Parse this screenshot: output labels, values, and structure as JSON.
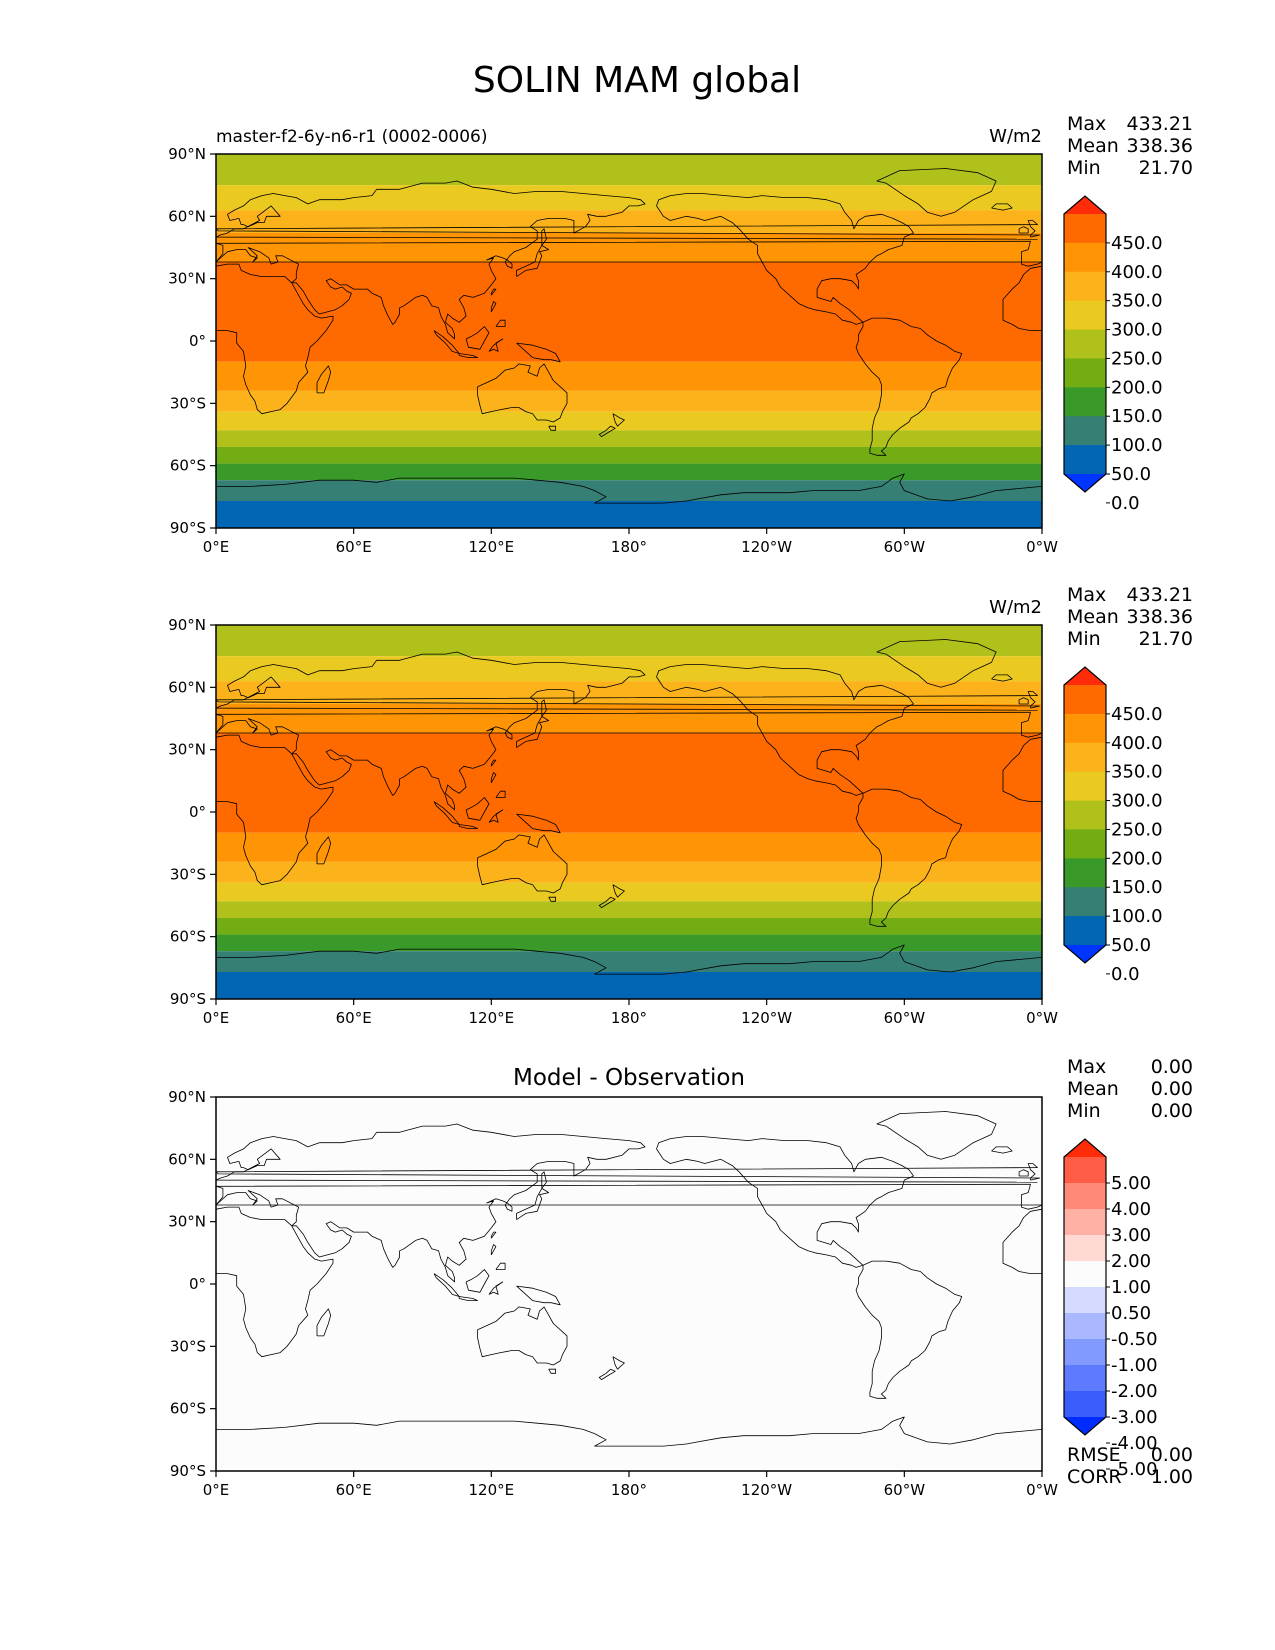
{
  "figure": {
    "title": "SOLIN MAM global"
  },
  "colors": {
    "solin_levels": [
      "#0035ff",
      "#0066b3",
      "#357f74",
      "#3a9a29",
      "#72ad14",
      "#b0c11b",
      "#eaca20",
      "#fcb31b",
      "#ff9505",
      "#ff6a00",
      "#ff2c0a"
    ],
    "diff_levels": [
      "#002cff",
      "#3a5dfc",
      "#5e7bff",
      "#829aff",
      "#a9b8ff",
      "#d4dbff",
      "#fcfcfc",
      "#ffd9d4",
      "#ffb1a5",
      "#ff8a77",
      "#ff5d45",
      "#ff2c0a"
    ]
  },
  "panels": [
    {
      "name": "model",
      "left_title": "master-f2-6y-n6-r1 (0002-0006)",
      "center_title": "",
      "units": "W/m2",
      "stats": {
        "max_label": "Max",
        "max": "433.21",
        "mean_label": "Mean",
        "mean": "338.36",
        "min_label": "Min",
        "min": "21.70"
      },
      "colorbar_labels": [
        "450.0",
        "400.0",
        "350.0",
        "300.0",
        "250.0",
        "200.0",
        "150.0",
        "100.0",
        "50.0",
        "0.0"
      ]
    },
    {
      "name": "observation",
      "left_title": "",
      "center_title": "",
      "units": "W/m2",
      "stats": {
        "max_label": "Max",
        "max": "433.21",
        "mean_label": "Mean",
        "mean": "338.36",
        "min_label": "Min",
        "min": "21.70"
      },
      "colorbar_labels": [
        "450.0",
        "400.0",
        "350.0",
        "300.0",
        "250.0",
        "200.0",
        "150.0",
        "100.0",
        "50.0",
        "0.0"
      ]
    },
    {
      "name": "difference",
      "left_title": "",
      "center_title": "Model - Observation",
      "units": "",
      "stats": {
        "max_label": "Max",
        "max": "0.00",
        "mean_label": "Mean",
        "mean": "0.00",
        "min_label": "Min",
        "min": "0.00"
      },
      "colorbar_labels": [
        "5.00",
        "4.00",
        "3.00",
        "2.00",
        "1.00",
        "0.50",
        "-0.50",
        "-1.00",
        "-2.00",
        "-3.00",
        "-4.00",
        "-5.00"
      ],
      "extra_stats": {
        "rmse_label": "RMSE",
        "rmse": "0.00",
        "corr_label": "CORR",
        "corr": "1.00"
      }
    }
  ],
  "axes": {
    "x_ticks": [
      "0°E",
      "60°E",
      "120°E",
      "180°",
      "120°W",
      "60°W",
      "0°W"
    ],
    "y_ticks": [
      "90°N",
      "60°N",
      "30°N",
      "0°",
      "30°S",
      "60°S",
      "90°S"
    ]
  },
  "chart_data": [
    {
      "type": "heatmap",
      "panel": "model",
      "title": "master-f2-6y-n6-r1 (0002-0006)",
      "units": "W/m2",
      "xlim": [
        0,
        360
      ],
      "ylim": [
        -90,
        90
      ],
      "color_levels": [
        0,
        50,
        100,
        150,
        200,
        250,
        300,
        350,
        400,
        450
      ],
      "latitude_bands": [
        {
          "lat_from": 90,
          "lat_to": 75,
          "value": 225
        },
        {
          "lat_from": 75,
          "lat_to": 63,
          "value": 275
        },
        {
          "lat_from": 63,
          "lat_to": 52,
          "value": 325
        },
        {
          "lat_from": 52,
          "lat_to": 38,
          "value": 375
        },
        {
          "lat_from": 38,
          "lat_to": -10,
          "value": 425
        },
        {
          "lat_from": -10,
          "lat_to": -24,
          "value": 375
        },
        {
          "lat_from": -24,
          "lat_to": -34,
          "value": 325
        },
        {
          "lat_from": -34,
          "lat_to": -43,
          "value": 275
        },
        {
          "lat_from": -43,
          "lat_to": -51,
          "value": 225
        },
        {
          "lat_from": -51,
          "lat_to": -59,
          "value": 175
        },
        {
          "lat_from": -59,
          "lat_to": -67,
          "value": 125
        },
        {
          "lat_from": -67,
          "lat_to": -77,
          "value": 75
        },
        {
          "lat_from": -77,
          "lat_to": -90,
          "value": 25
        }
      ],
      "stats": {
        "max": 433.21,
        "mean": 338.36,
        "min": 21.7
      }
    },
    {
      "type": "heatmap",
      "panel": "observation",
      "units": "W/m2",
      "xlim": [
        0,
        360
      ],
      "ylim": [
        -90,
        90
      ],
      "color_levels": [
        0,
        50,
        100,
        150,
        200,
        250,
        300,
        350,
        400,
        450
      ],
      "latitude_bands": [
        {
          "lat_from": 90,
          "lat_to": 75,
          "value": 225
        },
        {
          "lat_from": 75,
          "lat_to": 63,
          "value": 275
        },
        {
          "lat_from": 63,
          "lat_to": 52,
          "value": 325
        },
        {
          "lat_from": 52,
          "lat_to": 38,
          "value": 375
        },
        {
          "lat_from": 38,
          "lat_to": -10,
          "value": 425
        },
        {
          "lat_from": -10,
          "lat_to": -24,
          "value": 375
        },
        {
          "lat_from": -24,
          "lat_to": -34,
          "value": 325
        },
        {
          "lat_from": -34,
          "lat_to": -43,
          "value": 275
        },
        {
          "lat_from": -43,
          "lat_to": -51,
          "value": 225
        },
        {
          "lat_from": -51,
          "lat_to": -59,
          "value": 175
        },
        {
          "lat_from": -59,
          "lat_to": -67,
          "value": 125
        },
        {
          "lat_from": -67,
          "lat_to": -77,
          "value": 75
        },
        {
          "lat_from": -77,
          "lat_to": -90,
          "value": 25
        }
      ],
      "stats": {
        "max": 433.21,
        "mean": 338.36,
        "min": 21.7
      }
    },
    {
      "type": "heatmap",
      "panel": "difference",
      "title": "Model - Observation",
      "xlim": [
        0,
        360
      ],
      "ylim": [
        -90,
        90
      ],
      "color_levels": [
        -5,
        -4,
        -3,
        -2,
        -1,
        -0.5,
        0.5,
        1,
        2,
        3,
        4,
        5
      ],
      "latitude_bands": [
        {
          "lat_from": 90,
          "lat_to": -90,
          "value": 0
        }
      ],
      "stats": {
        "max": 0.0,
        "mean": 0.0,
        "min": 0.0,
        "rmse": 0.0,
        "corr": 1.0
      }
    }
  ]
}
